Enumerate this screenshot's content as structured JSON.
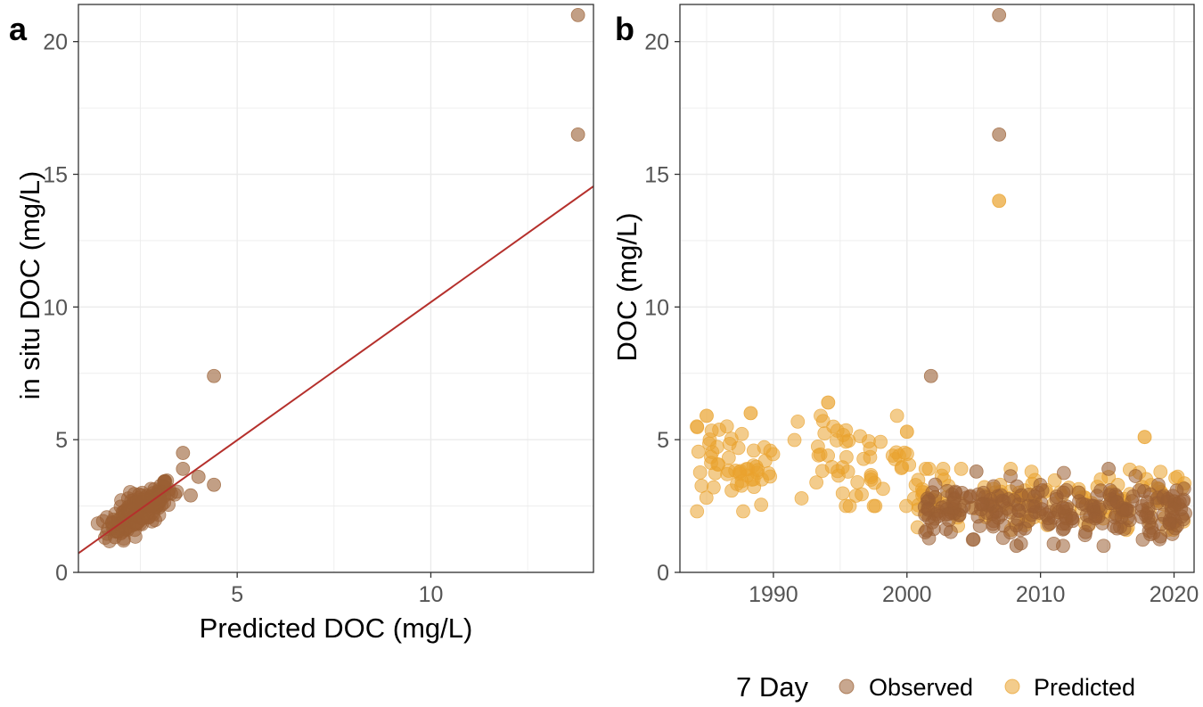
{
  "colors": {
    "observed": "#9a5f33",
    "predicted": "#e9a22e",
    "fit_line": "#b5302c",
    "grid": "#ebebeb",
    "panel_border": "#333333"
  },
  "legend": {
    "title": "7 Day",
    "items": [
      {
        "label": "Observed",
        "series": "observed"
      },
      {
        "label": "Predicted",
        "series": "predicted"
      }
    ]
  },
  "chart_data": [
    {
      "panel": "a",
      "type": "scatter",
      "xlabel": "Predicted DOC (mg/L)",
      "ylabel": "in situ DOC (mg/L)",
      "xlim": [
        0.9,
        14.2
      ],
      "ylim": [
        0,
        21.4
      ],
      "xticks": [
        5,
        10
      ],
      "yticks": [
        0,
        5,
        10,
        15,
        20
      ],
      "fit_line": {
        "x": [
          0.9,
          14.2
        ],
        "y": [
          0.72,
          14.55
        ]
      },
      "outliers": [
        {
          "x": 13.8,
          "y": 21.0
        },
        {
          "x": 13.8,
          "y": 16.5
        },
        {
          "x": 4.4,
          "y": 7.4
        },
        {
          "x": 3.6,
          "y": 4.5
        },
        {
          "x": 4.4,
          "y": 3.3
        },
        {
          "x": 3.6,
          "y": 3.9
        },
        {
          "x": 4.0,
          "y": 3.6
        },
        {
          "x": 3.8,
          "y": 2.9
        }
      ],
      "cluster": {
        "x_range": [
          1.4,
          3.6
        ],
        "y_range": [
          1.0,
          3.9
        ],
        "n_points": 190
      },
      "series": "observed"
    },
    {
      "panel": "b",
      "type": "scatter",
      "xlabel": "",
      "ylabel": "DOC (mg/L)",
      "xlim": [
        1983,
        2021.5
      ],
      "ylim": [
        0,
        21.4
      ],
      "xticks": [
        1990,
        2000,
        2010,
        2020
      ],
      "yticks": [
        0,
        5,
        10,
        15,
        20
      ],
      "series": [
        {
          "name": "Predicted",
          "highlights": [
            {
              "x": 2006.9,
              "y": 14.0
            },
            {
              "x": 1994.1,
              "y": 6.4
            },
            {
              "x": 1988.3,
              "y": 6.0
            },
            {
              "x": 1985.0,
              "y": 5.9
            },
            {
              "x": 2017.8,
              "y": 5.1
            },
            {
              "x": 2000.0,
              "y": 5.3
            }
          ],
          "periods": [
            {
              "x_range": [
                1984.2,
                1990.0
              ],
              "y_range": [
                2.3,
                5.5
              ],
              "n_points": 55
            },
            {
              "x_range": [
                1991.5,
                2000.5
              ],
              "y_range": [
                2.5,
                5.9
              ],
              "n_points": 55
            },
            {
              "x_range": [
                2000.5,
                2021.0
              ],
              "y_range": [
                1.6,
                3.9
              ],
              "n_points": 150
            }
          ]
        },
        {
          "name": "Observed",
          "highlights": [
            {
              "x": 2006.9,
              "y": 21.0
            },
            {
              "x": 2006.9,
              "y": 16.5
            },
            {
              "x": 2001.8,
              "y": 7.4
            },
            {
              "x": 2005.2,
              "y": 3.8
            },
            {
              "x": 2015.1,
              "y": 3.9
            },
            {
              "x": 2008.2,
              "y": 1.0
            }
          ],
          "periods": [
            {
              "x_range": [
                2001.3,
                2021.0
              ],
              "y_range": [
                1.0,
                4.0
              ],
              "n_points": 240
            }
          ]
        }
      ]
    }
  ]
}
